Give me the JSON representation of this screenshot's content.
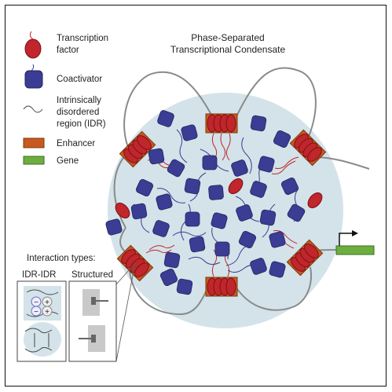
{
  "title": {
    "line1": "Phase-Separated",
    "line2": "Transcriptional Condensate"
  },
  "legend": {
    "transcription_factor": [
      "Transcription",
      "factor"
    ],
    "coactivator": "Coactivator",
    "idr": [
      "Intrinsically",
      "disordered",
      "region (IDR)"
    ],
    "enhancer": "Enhancer",
    "gene": "Gene"
  },
  "inset": {
    "title": "Interaction types:",
    "col1": "IDR-IDR",
    "col2": "Structured"
  },
  "colors": {
    "transcription_factor": "#c0262b",
    "coactivator": "#3a3d93",
    "enhancer": "#c8591f",
    "gene": "#6cae3f",
    "condensate": "#d3e3e9",
    "dna": "#8a8a8a"
  }
}
